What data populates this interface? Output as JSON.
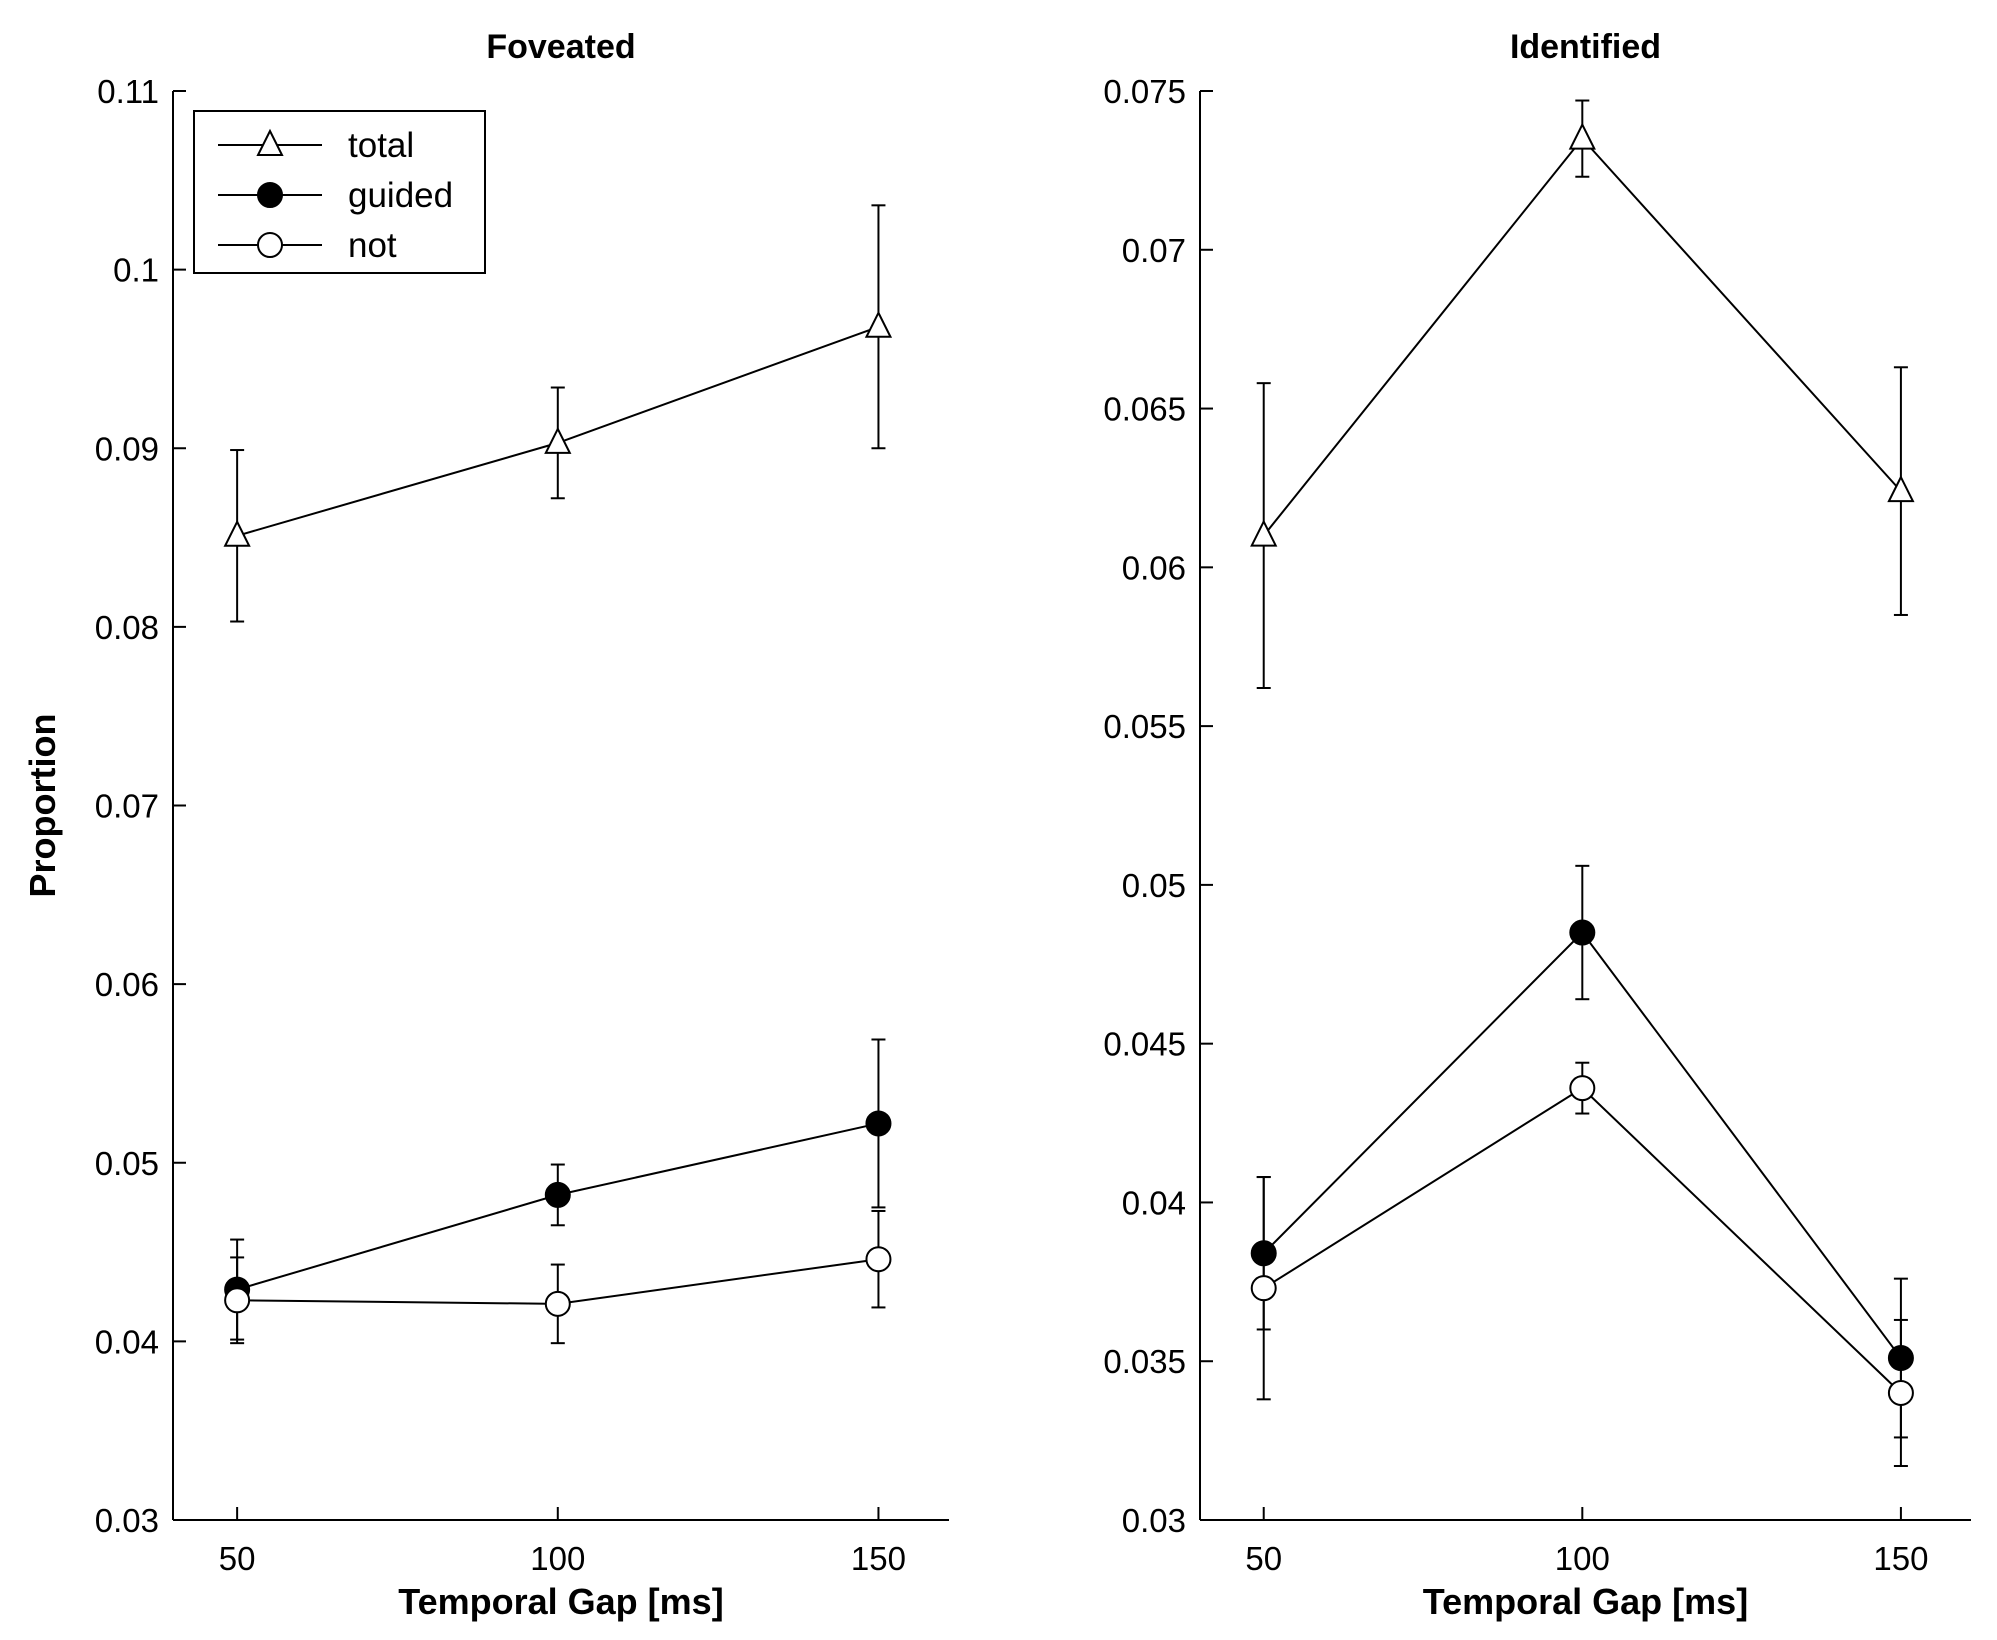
{
  "chart_data": [
    {
      "type": "line",
      "title": "Foveated",
      "xlabel": "Temporal Gap [ms]",
      "ylabel": "Proportion",
      "x": [
        50,
        100,
        150
      ],
      "x_ticks": [
        "50",
        "100",
        "150"
      ],
      "xlim": [
        40,
        161
      ],
      "ylim": [
        0.03,
        0.11
      ],
      "y_ticks": [
        "0.03",
        "0.04",
        "0.05",
        "0.06",
        "0.07",
        "0.08",
        "0.09",
        "0.1",
        "0.11"
      ],
      "y_tick_values": [
        0.03,
        0.04,
        0.05,
        0.06,
        0.07,
        0.08,
        0.09,
        0.1,
        0.11
      ],
      "grid": false,
      "legend_position": "top-left",
      "series": [
        {
          "name": "total",
          "marker": "triangle-open",
          "values": [
            0.0851,
            0.0903,
            0.0968
          ],
          "err": [
            0.0048,
            0.0031,
            0.0068
          ]
        },
        {
          "name": "guided",
          "marker": "circle-filled",
          "values": [
            0.0429,
            0.0482,
            0.0522
          ],
          "err": [
            0.0028,
            0.0017,
            0.0047
          ]
        },
        {
          "name": "not",
          "marker": "circle-open",
          "values": [
            0.0423,
            0.0421,
            0.0446
          ],
          "err": [
            0.0024,
            0.0022,
            0.0027
          ]
        }
      ]
    },
    {
      "type": "line",
      "title": "Identified",
      "xlabel": "Temporal Gap [ms]",
      "ylabel": "",
      "x": [
        50,
        100,
        150
      ],
      "x_ticks": [
        "50",
        "100",
        "150"
      ],
      "xlim": [
        40,
        161
      ],
      "ylim": [
        0.03,
        0.075
      ],
      "y_ticks": [
        "0.03",
        "0.035",
        "0.04",
        "0.045",
        "0.05",
        "0.055",
        "0.06",
        "0.065",
        "0.07",
        "0.075"
      ],
      "y_tick_values": [
        0.03,
        0.035,
        0.04,
        0.045,
        0.05,
        0.055,
        0.06,
        0.065,
        0.07,
        0.075
      ],
      "grid": false,
      "series": [
        {
          "name": "total",
          "marker": "triangle-open",
          "values": [
            0.061,
            0.0735,
            0.0624
          ],
          "err": [
            0.0048,
            0.0012,
            0.0039
          ]
        },
        {
          "name": "guided",
          "marker": "circle-filled",
          "values": [
            0.0384,
            0.0485,
            0.0351
          ],
          "err": [
            0.0024,
            0.0021,
            0.0025
          ]
        },
        {
          "name": "not",
          "marker": "circle-open",
          "values": [
            0.0373,
            0.0436,
            0.034
          ],
          "err": [
            0.0035,
            0.0008,
            0.0023
          ]
        }
      ]
    }
  ]
}
